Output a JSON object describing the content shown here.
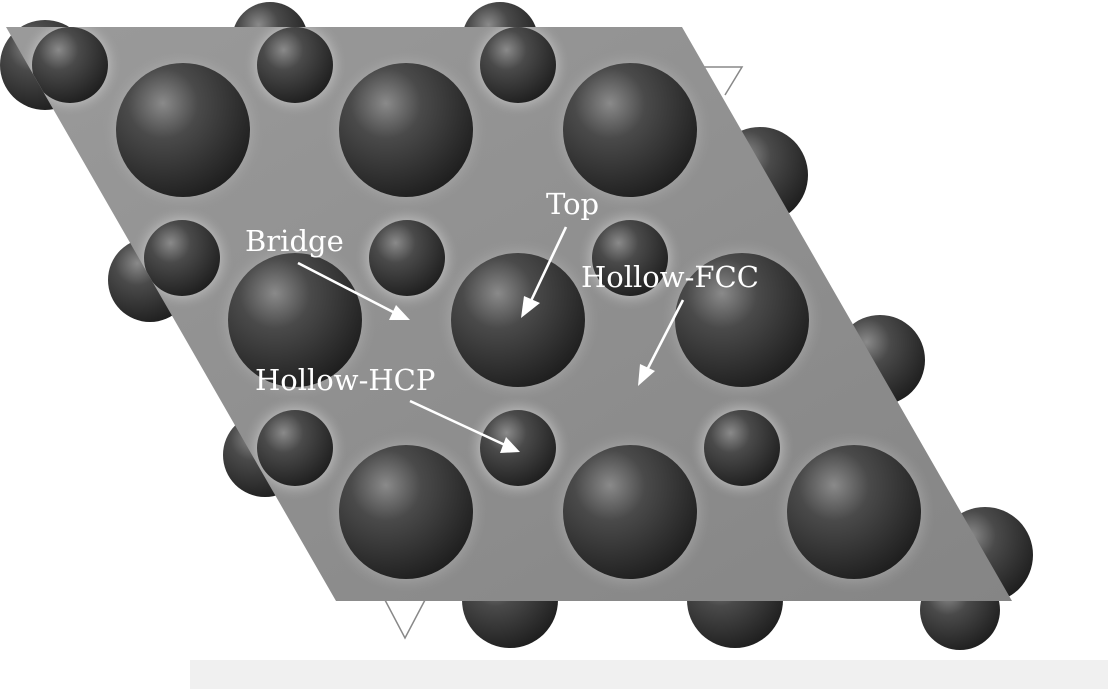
{
  "labels": {
    "top": "Top",
    "bridge": "Bridge",
    "hollow_fcc": "Hollow-FCC",
    "hollow_hcp": "Hollow-HCP"
  },
  "colors": {
    "slab": "#8c8c8c",
    "atom": "#2c2c2c",
    "label": "#ffffff",
    "background": "#ffffff"
  }
}
